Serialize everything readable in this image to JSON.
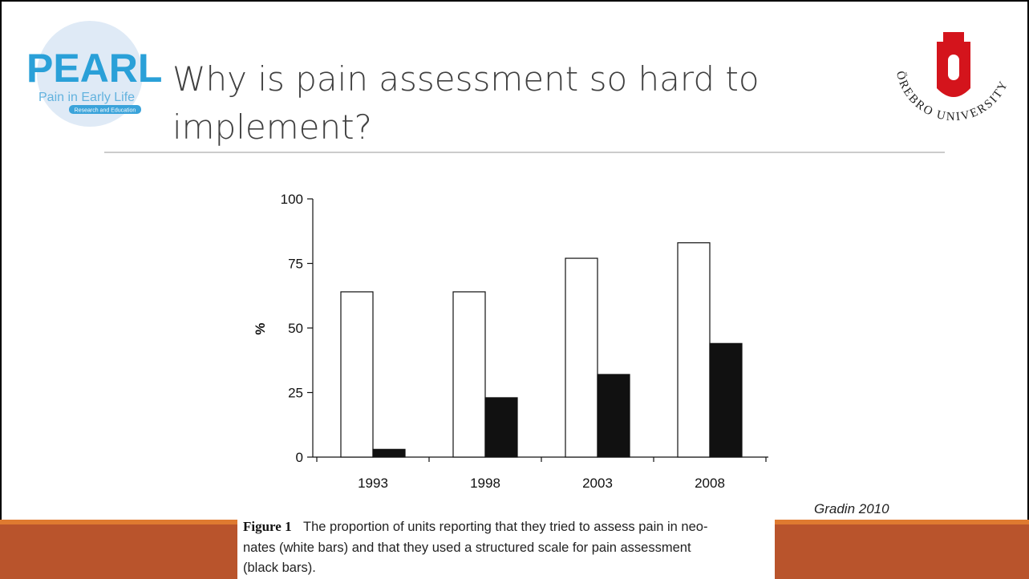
{
  "title_lines": [
    "Why is pain assessment so hard to",
    "implement?"
  ],
  "logo_left": {
    "name": "PEARL",
    "tagline": "Pain in Early Life",
    "badge": "Research and Education"
  },
  "logo_right": {
    "text": "ÖREBRO UNIVERSITY"
  },
  "citation": "Gradin 2010",
  "caption": {
    "label": "Figure 1",
    "lines": [
      "The proportion of units reporting that they tried to assess pain in neo-",
      "nates (white bars) and that they used a structured scale for pain assessment",
      "(black bars)."
    ]
  },
  "chart_data": {
    "type": "bar",
    "y_label": "%",
    "categories": [
      "1993",
      "1998",
      "2003",
      "2008"
    ],
    "series": [
      {
        "color": "#ffffff",
        "values": [
          64,
          64,
          77,
          83
        ]
      },
      {
        "color": "#111111",
        "values": [
          3,
          23,
          32,
          44
        ]
      }
    ],
    "ylim": [
      0,
      100
    ],
    "yticks": [
      0,
      25,
      50,
      75,
      100
    ],
    "grid": false
  }
}
